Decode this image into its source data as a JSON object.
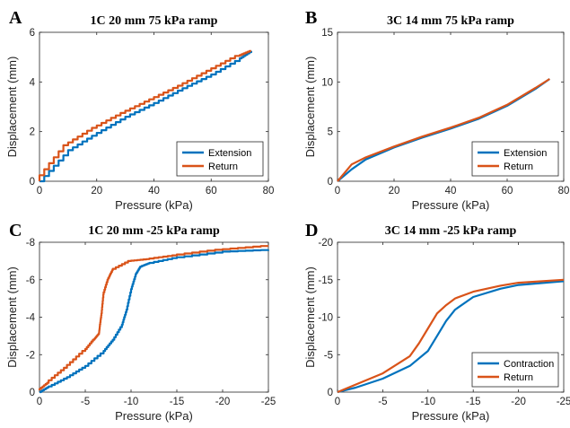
{
  "colors": {
    "extension": "#0072BD",
    "return": "#D95319",
    "axis": "#262626"
  },
  "chart_data": [
    {
      "panel": "A",
      "type": "line",
      "title": "1C 20 mm 75 kPa ramp",
      "xlabel": "Pressure (kPa)",
      "ylabel": "Displacement (mm)",
      "xlim": [
        0,
        80
      ],
      "ylim": [
        0,
        6
      ],
      "xticks": [
        0,
        20,
        40,
        60,
        80
      ],
      "yticks": [
        0,
        2,
        4,
        6
      ],
      "xtick_labels": [
        "0",
        "20",
        "40",
        "60",
        "80"
      ],
      "ytick_labels": [
        "0",
        "2",
        "4",
        "6"
      ],
      "legend": "bottom-right",
      "series": [
        {
          "name": "Extension",
          "color": "#0072BD",
          "step": true,
          "x": [
            0,
            10,
            20,
            30,
            40,
            50,
            60,
            70,
            74
          ],
          "y": [
            0,
            1.25,
            1.95,
            2.6,
            3.15,
            3.75,
            4.3,
            4.95,
            5.25
          ]
        },
        {
          "name": "Return",
          "color": "#D95319",
          "step": true,
          "x": [
            74,
            70,
            60,
            50,
            40,
            30,
            20,
            10,
            0
          ],
          "y": [
            5.25,
            5.05,
            4.45,
            3.85,
            3.3,
            2.75,
            2.15,
            1.45,
            0
          ]
        }
      ]
    },
    {
      "panel": "B",
      "type": "line",
      "title": "3C 14 mm 75 kPa ramp",
      "xlabel": "Pressure (kPa)",
      "ylabel": "Displacement (mm)",
      "xlim": [
        0,
        80
      ],
      "ylim": [
        0,
        15
      ],
      "xticks": [
        0,
        20,
        40,
        60,
        80
      ],
      "yticks": [
        0,
        5,
        10,
        15
      ],
      "xtick_labels": [
        "0",
        "20",
        "40",
        "60",
        "80"
      ],
      "ytick_labels": [
        "0",
        "5",
        "10",
        "15"
      ],
      "legend": "bottom-right",
      "series": [
        {
          "name": "Extension",
          "color": "#0072BD",
          "step": false,
          "x": [
            0,
            5,
            10,
            20,
            30,
            40,
            50,
            60,
            70,
            75
          ],
          "y": [
            0,
            1.2,
            2.2,
            3.4,
            4.4,
            5.3,
            6.3,
            7.6,
            9.3,
            10.3
          ]
        },
        {
          "name": "Return",
          "color": "#D95319",
          "step": false,
          "x": [
            75,
            70,
            60,
            50,
            40,
            30,
            20,
            10,
            5,
            0
          ],
          "y": [
            10.3,
            9.4,
            7.7,
            6.4,
            5.4,
            4.5,
            3.5,
            2.4,
            1.7,
            0
          ]
        }
      ]
    },
    {
      "panel": "C",
      "type": "line",
      "title": "1C 20 mm -25 kPa ramp",
      "xlabel": "Pressure (kPa)",
      "ylabel": "Displacement (mm)",
      "xlim": [
        0,
        -25
      ],
      "ylim": [
        0,
        -8
      ],
      "xticks": [
        0,
        -5,
        -10,
        -15,
        -20,
        -25
      ],
      "yticks": [
        0,
        -2,
        -4,
        -6,
        -8
      ],
      "xtick_labels": [
        "0",
        "-5",
        "-10",
        "-15",
        "-20",
        "-25"
      ],
      "ytick_labels": [
        "0",
        "-2",
        "-4",
        "-6",
        "-8"
      ],
      "legend": "none",
      "series": [
        {
          "name": "",
          "color": "#0072BD",
          "step": true,
          "x": [
            0,
            -1,
            -3,
            -5,
            -7,
            -8,
            -9,
            -9.5,
            -10,
            -10.5,
            -11,
            -12,
            -15,
            -20,
            -25
          ],
          "y": [
            0,
            -0.3,
            -0.8,
            -1.4,
            -2.2,
            -2.8,
            -3.6,
            -4.4,
            -5.5,
            -6.3,
            -6.7,
            -6.9,
            -7.2,
            -7.5,
            -7.6
          ]
        },
        {
          "name": "",
          "color": "#D95319",
          "step": true,
          "x": [
            -25,
            -20,
            -15,
            -12,
            -10,
            -8,
            -7.5,
            -7,
            -6.8,
            -6.6,
            -6.5,
            -6,
            -5,
            -3,
            -1,
            0
          ],
          "y": [
            -7.8,
            -7.6,
            -7.3,
            -7.1,
            -7.0,
            -6.5,
            -6.0,
            -5.2,
            -4.2,
            -3.5,
            -3.1,
            -2.8,
            -2.2,
            -1.3,
            -0.5,
            -0.1
          ]
        }
      ]
    },
    {
      "panel": "D",
      "type": "line",
      "title": "3C 14 mm -25 kPa ramp",
      "xlabel": "Pressure (kPa)",
      "ylabel": "Displacement (mm)",
      "xlim": [
        0,
        -25
      ],
      "ylim": [
        0,
        -20
      ],
      "xticks": [
        0,
        -5,
        -10,
        -15,
        -20,
        -25
      ],
      "yticks": [
        0,
        -5,
        -10,
        -15,
        -20
      ],
      "xtick_labels": [
        "0",
        "-5",
        "-10",
        "-15",
        "-20",
        "-25"
      ],
      "ytick_labels": [
        "0",
        "-5",
        "-10",
        "-15",
        "-20"
      ],
      "legend": "bottom-right",
      "series": [
        {
          "name": "Contraction",
          "color": "#0072BD",
          "step": false,
          "x": [
            0,
            -2,
            -5,
            -8,
            -10,
            -11,
            -12,
            -13,
            -15,
            -18,
            -20,
            -25
          ],
          "y": [
            0,
            -0.6,
            -1.8,
            -3.5,
            -5.5,
            -7.5,
            -9.5,
            -11,
            -12.7,
            -13.8,
            -14.3,
            -14.8
          ]
        },
        {
          "name": "Return",
          "color": "#D95319",
          "step": false,
          "x": [
            -25,
            -20,
            -18,
            -15,
            -13,
            -12,
            -11,
            -10,
            -9,
            -8,
            -5,
            -2,
            0
          ],
          "y": [
            -15,
            -14.6,
            -14.2,
            -13.4,
            -12.5,
            -11.6,
            -10.5,
            -8.5,
            -6.5,
            -4.8,
            -2.5,
            -1,
            0
          ]
        }
      ]
    }
  ]
}
